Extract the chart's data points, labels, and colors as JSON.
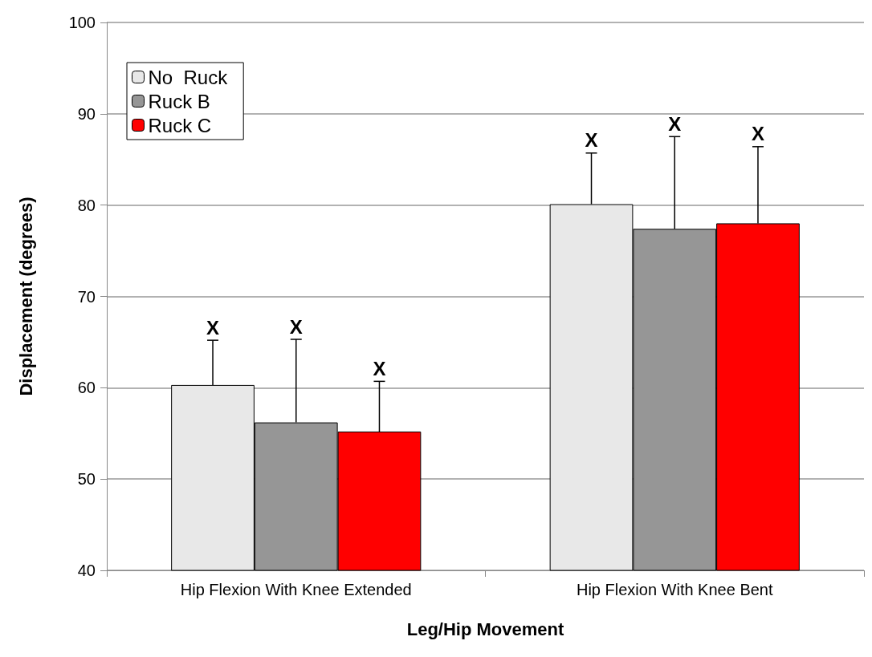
{
  "chart_data": {
    "type": "bar",
    "xlabel": "Leg/Hip Movement",
    "ylabel": "Displacement (degrees)",
    "categories": [
      "Hip Flexion With Knee Extended",
      "Hip Flexion With Knee Bent"
    ],
    "series": [
      {
        "name": "No  Ruck",
        "color": "#e8e8e8",
        "values": [
          60.3,
          80.1
        ],
        "errors": [
          [
            60.3,
            65.2
          ],
          [
            80.1,
            85.7
          ]
        ]
      },
      {
        "name": "Ruck B",
        "color": "#969696",
        "values": [
          56.2,
          77.4
        ],
        "errors": [
          [
            56.2,
            65.3
          ],
          [
            77.4,
            87.5
          ]
        ]
      },
      {
        "name": "Ruck C",
        "color": "#ff0000",
        "values": [
          55.2,
          78.0
        ],
        "errors": [
          [
            55.2,
            60.7
          ],
          [
            78.0,
            86.4
          ]
        ]
      }
    ],
    "annotations": [
      "X",
      "X",
      "X",
      "X",
      "X",
      "X"
    ],
    "ylim": [
      40,
      100
    ],
    "yticks": [
      40,
      50,
      60,
      70,
      80,
      90,
      100
    ],
    "grid": "y",
    "legend": "top left"
  }
}
